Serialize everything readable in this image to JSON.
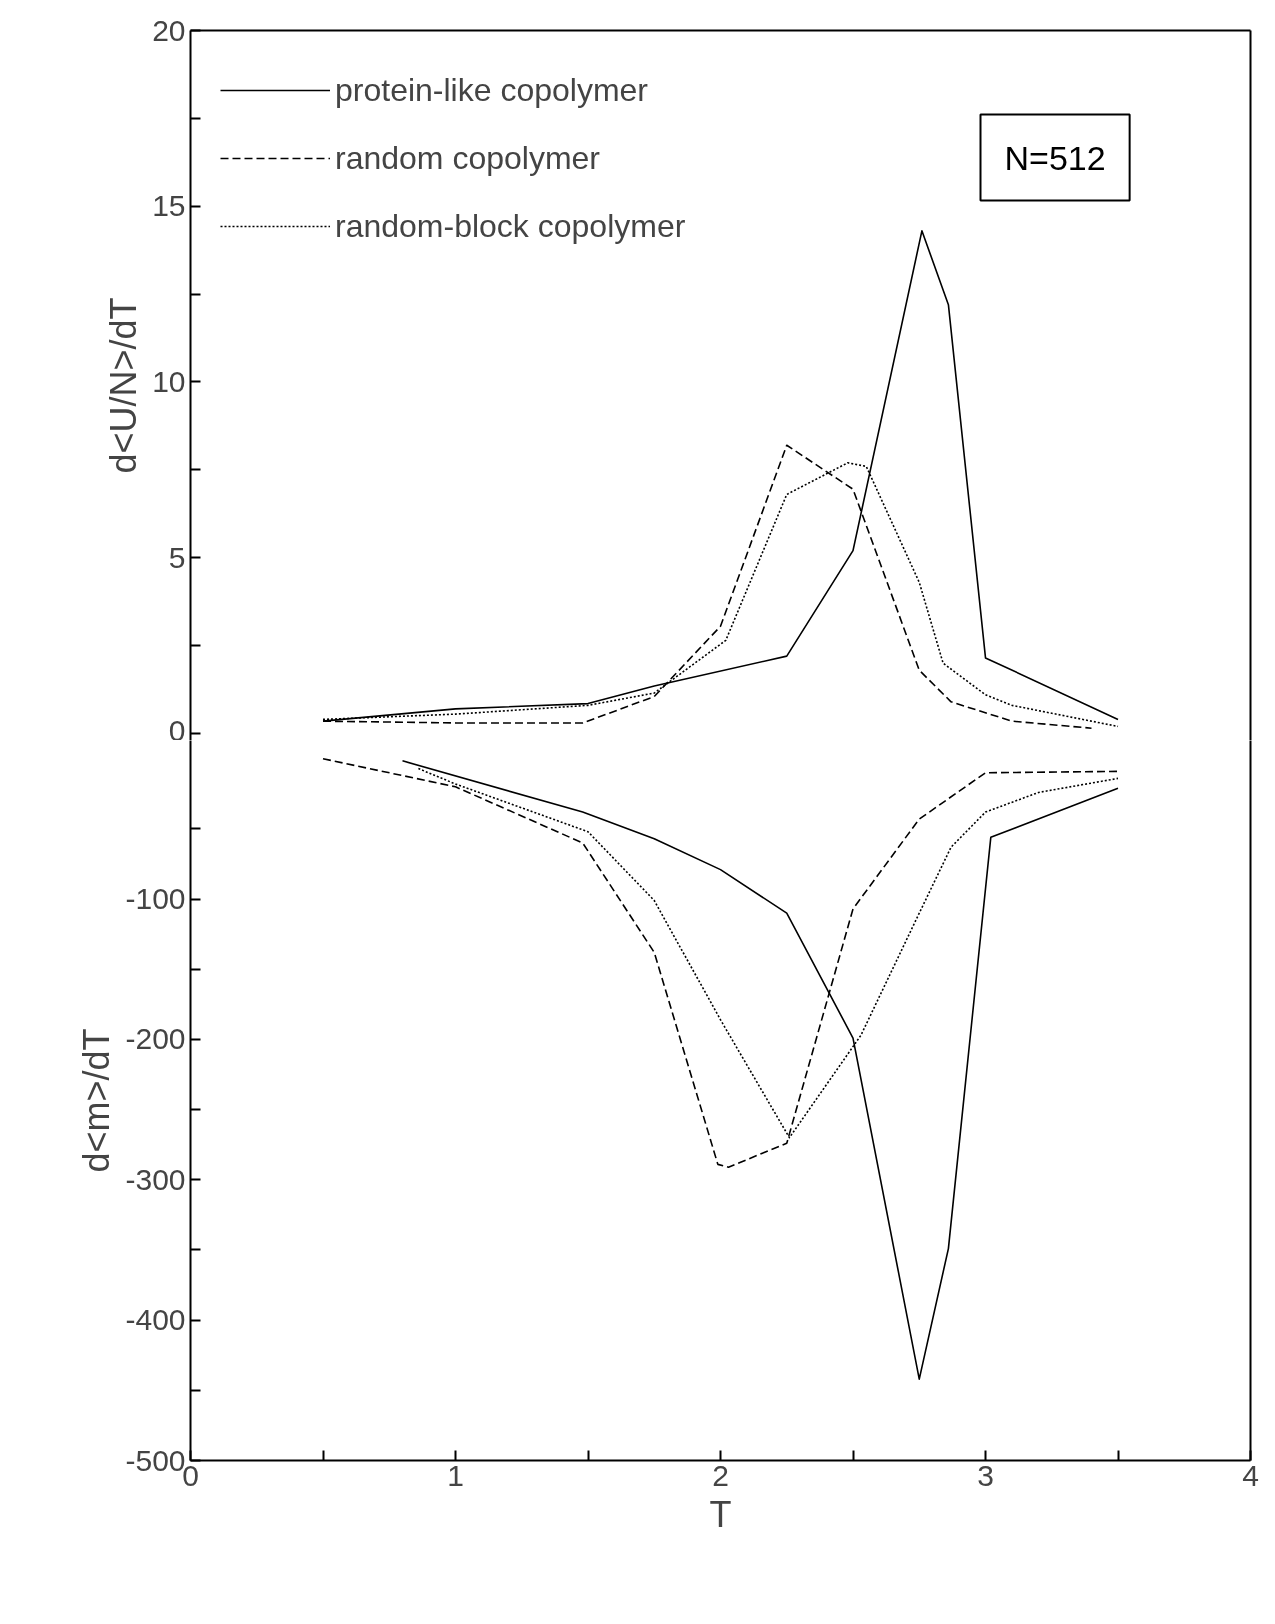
{
  "chart_data": [
    {
      "type": "line",
      "ylabel": "d<U/N>/dT",
      "xlim": [
        0,
        4
      ],
      "ylim": [
        -0.2,
        20
      ],
      "tick_labels": "y",
      "legend": "top left",
      "annotations": [
        "N=512"
      ],
      "yticks": [
        0,
        {
          "value": 2.5,
          "label": null
        },
        5,
        {
          "value": 7.5,
          "label": null
        },
        10,
        {
          "value": 12.5,
          "label": null
        },
        15,
        {
          "value": 17.5,
          "label": null
        },
        20
      ],
      "series": [
        {
          "name": "protein-like copolymer",
          "color": "#000000",
          "line_style": "solid",
          "x": [
            0.5,
            1.0,
            1.5,
            1.75,
            2.25,
            2.5,
            2.76,
            2.86,
            3.0,
            3.5
          ],
          "values": [
            0.35,
            0.7,
            0.85,
            1.35,
            2.2,
            5.2,
            14.3,
            12.2,
            2.15,
            0.4
          ]
        },
        {
          "name": "random copolymer",
          "color": "#000000",
          "line_style": "dashed",
          "x": [
            0.5,
            1.0,
            1.48,
            1.75,
            2.0,
            2.25,
            2.5,
            2.75,
            2.87,
            3.1,
            3.4
          ],
          "values": [
            0.35,
            0.3,
            0.3,
            1.05,
            3.05,
            8.2,
            6.95,
            1.8,
            0.9,
            0.35,
            0.15
          ]
        },
        {
          "name": "random-block copolymer",
          "color": "#000000",
          "line_style": "dotted",
          "x": [
            0.5,
            1.0,
            1.5,
            1.75,
            2.02,
            2.25,
            2.48,
            2.55,
            2.75,
            2.84,
            3.0,
            3.1,
            3.5
          ],
          "values": [
            0.4,
            0.55,
            0.8,
            1.15,
            2.65,
            6.8,
            7.7,
            7.6,
            4.3,
            2.0,
            1.1,
            0.8,
            0.2
          ]
        }
      ]
    },
    {
      "type": "line",
      "xlabel": "T",
      "ylabel": "d<m>/dT",
      "xlim": [
        0,
        4
      ],
      "ylim": [
        -500,
        13
      ],
      "xticks": [
        0,
        {
          "value": 0.5,
          "label": null
        },
        1,
        {
          "value": 1.5,
          "label": null
        },
        2,
        {
          "value": 2.5,
          "label": null
        },
        3,
        {
          "value": 3.5,
          "label": null
        },
        4
      ],
      "yticks": [
        -500,
        {
          "value": -450,
          "label": null
        },
        -400,
        {
          "value": -350,
          "label": null
        },
        -300,
        {
          "value": -250,
          "label": null
        },
        -200,
        {
          "value": -150,
          "label": null
        },
        -100,
        {
          "value": -50,
          "label": null
        }
      ],
      "series": [
        {
          "color": "#000000",
          "line_style": "solid",
          "x": [
            0.8,
            1.48,
            1.75,
            2.0,
            2.25,
            2.5,
            2.75,
            2.86,
            3.02,
            3.5
          ],
          "values": [
            -1.5,
            -38,
            -57,
            -79,
            -110,
            -199,
            -442,
            -349,
            -56,
            -21
          ]
        },
        {
          "color": "#000000",
          "line_style": "dashed",
          "x": [
            0.5,
            1.0,
            1.48,
            1.75,
            1.99,
            2.03,
            2.25,
            2.5,
            2.75,
            3.0,
            3.5
          ],
          "values": [
            0,
            -20,
            -60,
            -138,
            -289,
            -291,
            -274,
            -107,
            -43,
            -10,
            -9
          ]
        },
        {
          "color": "#000000",
          "line_style": "dotted",
          "x": [
            0.86,
            1.0,
            1.5,
            1.75,
            2.0,
            2.26,
            2.53,
            2.75,
            2.87,
            3.0,
            3.2,
            3.5
          ],
          "values": [
            -7,
            -18,
            -52,
            -101,
            -186,
            -270,
            -197,
            -110,
            -63,
            -38,
            -24,
            -14
          ]
        }
      ]
    }
  ]
}
